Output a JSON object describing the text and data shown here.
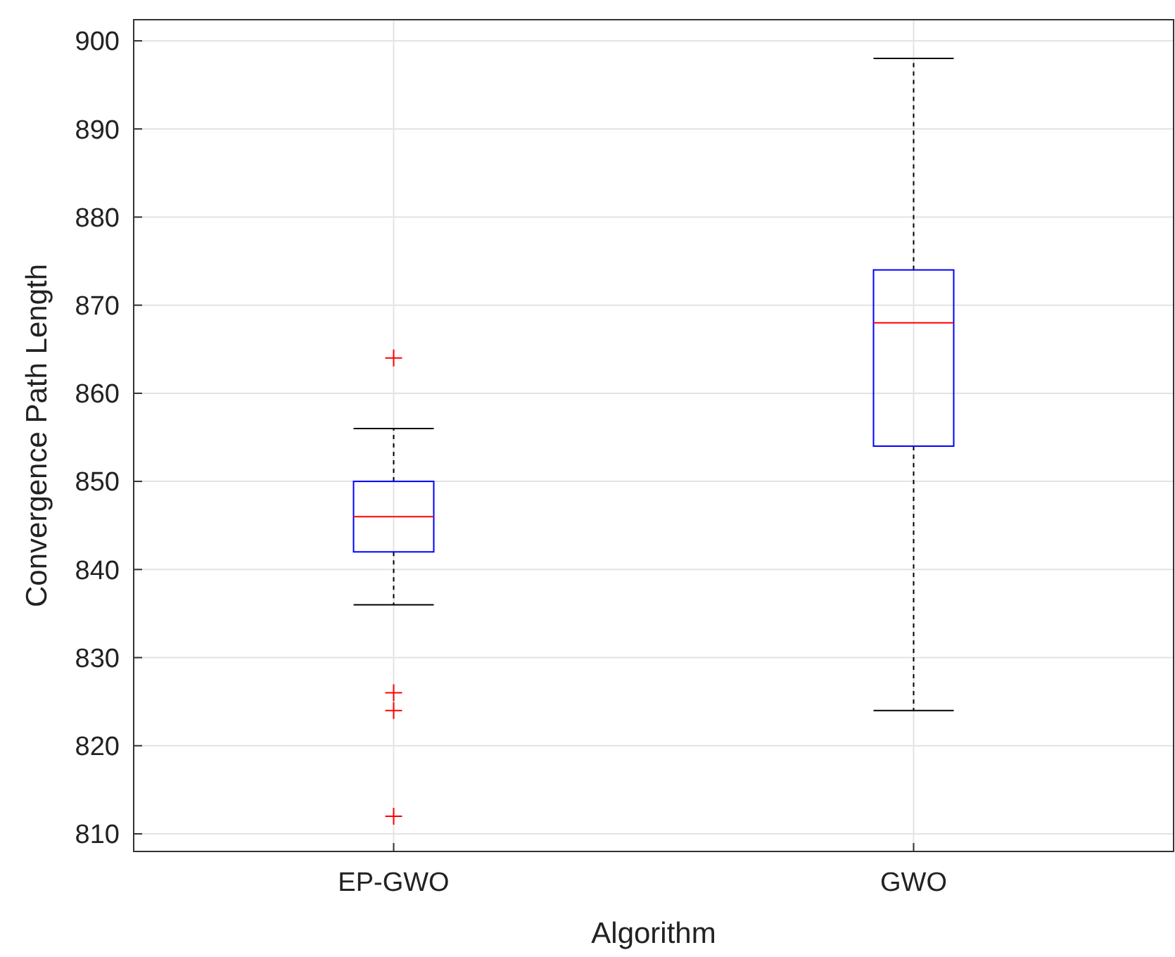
{
  "chart_data": {
    "type": "box",
    "xlabel": "Algorithm",
    "ylabel": "Convergence Path Length",
    "categories": [
      "EP-GWO",
      "GWO"
    ],
    "boxes": [
      {
        "low": 836,
        "q1": 842,
        "median": 846,
        "q3": 850,
        "high": 856,
        "outliers": [
          864,
          826,
          824,
          812
        ]
      },
      {
        "low": 824,
        "q1": 854,
        "median": 868,
        "q3": 874,
        "high": 898
      }
    ],
    "color": "#0000ff",
    "ylim": [
      808,
      902.4
    ],
    "yticks": [
      810,
      820,
      830,
      840,
      850,
      860,
      870,
      880,
      890,
      900
    ],
    "grid": true,
    "marker": "cross"
  }
}
